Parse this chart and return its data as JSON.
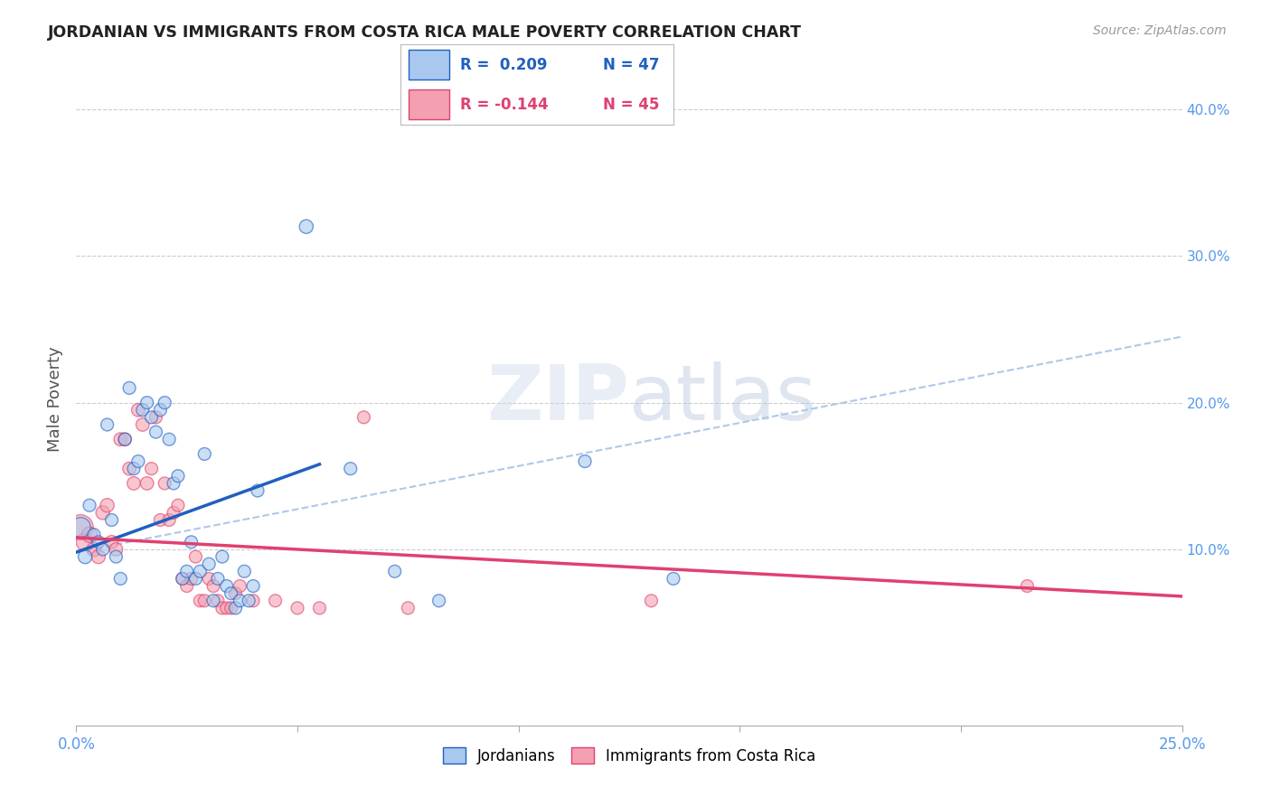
{
  "title": "JORDANIAN VS IMMIGRANTS FROM COSTA RICA MALE POVERTY CORRELATION CHART",
  "source": "Source: ZipAtlas.com",
  "ylabel": "Male Poverty",
  "right_yticks": [
    "40.0%",
    "30.0%",
    "20.0%",
    "10.0%"
  ],
  "right_ytick_vals": [
    0.4,
    0.3,
    0.2,
    0.1
  ],
  "xlim": [
    0.0,
    0.25
  ],
  "ylim": [
    -0.02,
    0.425
  ],
  "legend1_r": "R =  0.209",
  "legend1_n": "N = 47",
  "legend2_r": "R = -0.144",
  "legend2_n": "N = 45",
  "color_blue": "#a8c8f0",
  "color_pink": "#f4a0b0",
  "color_trendline_blue": "#2060c0",
  "color_trendline_pink": "#e04070",
  "color_trendline_dashed": "#b0c8e8",
  "background": "#ffffff",
  "jordanians_x": [
    0.001,
    0.002,
    0.003,
    0.004,
    0.005,
    0.006,
    0.007,
    0.008,
    0.009,
    0.01,
    0.011,
    0.012,
    0.013,
    0.014,
    0.015,
    0.016,
    0.017,
    0.018,
    0.019,
    0.02,
    0.021,
    0.022,
    0.023,
    0.024,
    0.025,
    0.026,
    0.027,
    0.028,
    0.029,
    0.03,
    0.031,
    0.032,
    0.033,
    0.034,
    0.035,
    0.036,
    0.037,
    0.038,
    0.039,
    0.04,
    0.041,
    0.052,
    0.062,
    0.072,
    0.082,
    0.115,
    0.135
  ],
  "jordanians_y": [
    0.115,
    0.095,
    0.13,
    0.11,
    0.105,
    0.1,
    0.185,
    0.12,
    0.095,
    0.08,
    0.175,
    0.21,
    0.155,
    0.16,
    0.195,
    0.2,
    0.19,
    0.18,
    0.195,
    0.2,
    0.175,
    0.145,
    0.15,
    0.08,
    0.085,
    0.105,
    0.08,
    0.085,
    0.165,
    0.09,
    0.065,
    0.08,
    0.095,
    0.075,
    0.07,
    0.06,
    0.065,
    0.085,
    0.065,
    0.075,
    0.14,
    0.32,
    0.155,
    0.085,
    0.065,
    0.16,
    0.08
  ],
  "jordanians_size": [
    250,
    120,
    100,
    100,
    100,
    100,
    100,
    100,
    100,
    100,
    100,
    100,
    100,
    100,
    100,
    100,
    100,
    100,
    100,
    100,
    100,
    100,
    100,
    100,
    100,
    100,
    100,
    100,
    100,
    100,
    100,
    100,
    100,
    100,
    100,
    100,
    100,
    100,
    100,
    100,
    100,
    120,
    100,
    100,
    100,
    100,
    100
  ],
  "costarica_x": [
    0.001,
    0.002,
    0.003,
    0.004,
    0.005,
    0.006,
    0.007,
    0.008,
    0.009,
    0.01,
    0.011,
    0.012,
    0.013,
    0.014,
    0.015,
    0.016,
    0.017,
    0.018,
    0.019,
    0.02,
    0.021,
    0.022,
    0.023,
    0.024,
    0.025,
    0.026,
    0.027,
    0.028,
    0.029,
    0.03,
    0.031,
    0.032,
    0.033,
    0.034,
    0.035,
    0.036,
    0.037,
    0.04,
    0.045,
    0.05,
    0.055,
    0.065,
    0.075,
    0.13,
    0.215
  ],
  "costarica_y": [
    0.115,
    0.105,
    0.11,
    0.1,
    0.095,
    0.125,
    0.13,
    0.105,
    0.1,
    0.175,
    0.175,
    0.155,
    0.145,
    0.195,
    0.185,
    0.145,
    0.155,
    0.19,
    0.12,
    0.145,
    0.12,
    0.125,
    0.13,
    0.08,
    0.075,
    0.08,
    0.095,
    0.065,
    0.065,
    0.08,
    0.075,
    0.065,
    0.06,
    0.06,
    0.06,
    0.07,
    0.075,
    0.065,
    0.065,
    0.06,
    0.06,
    0.19,
    0.06,
    0.065,
    0.075
  ],
  "costarica_size": [
    400,
    200,
    150,
    130,
    120,
    120,
    120,
    110,
    110,
    110,
    110,
    110,
    110,
    110,
    110,
    110,
    100,
    100,
    100,
    100,
    100,
    100,
    100,
    100,
    100,
    100,
    100,
    100,
    100,
    100,
    100,
    100,
    100,
    100,
    100,
    100,
    100,
    100,
    100,
    100,
    100,
    100,
    100,
    100,
    100
  ],
  "trendline_blue_x0": 0.0,
  "trendline_blue_y0": 0.098,
  "trendline_blue_x1": 0.055,
  "trendline_blue_y1": 0.158,
  "trendline_blue_dashed_x1": 0.25,
  "trendline_blue_dashed_y1": 0.245,
  "trendline_pink_x0": 0.0,
  "trendline_pink_y0": 0.108,
  "trendline_pink_x1": 0.25,
  "trendline_pink_y1": 0.068
}
